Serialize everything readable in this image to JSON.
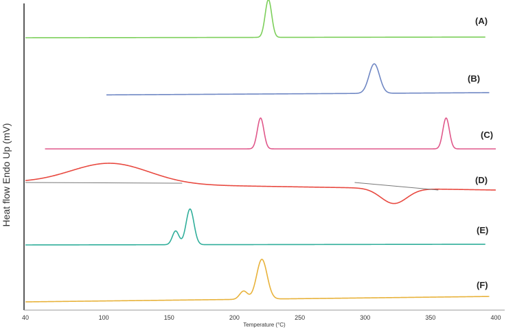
{
  "chart_data": {
    "type": "line",
    "title": "",
    "xlabel": "Temperature (°C)",
    "ylabel": "Heat flow Endo Up (mV)",
    "xlim": [
      40,
      400
    ],
    "x_ticks": [
      "40",
      "100",
      "150",
      "200",
      "250",
      "300",
      "350",
      "400"
    ],
    "grid": false,
    "legend": "none",
    "series": [
      {
        "label": "(A)",
        "color": "#7ccf5a",
        "peaks": [
          {
            "x": 226,
            "height": 1.0,
            "width": 2.5
          }
        ]
      },
      {
        "label": "(B)",
        "color": "#6f87c4",
        "peaks": [
          {
            "x": 307,
            "height": 1.0,
            "width": 4
          }
        ]
      },
      {
        "label": "(C)",
        "color": "#e0578a",
        "peaks": [
          {
            "x": 220,
            "height": 1.0,
            "width": 2.5
          },
          {
            "x": 362,
            "height": 1.0,
            "width": 2.5
          }
        ]
      },
      {
        "label": "(D)",
        "color": "#e8483f",
        "peaks": [
          {
            "x": 105,
            "height": 1.0,
            "width": 30
          },
          {
            "x": 322,
            "height": -1.0,
            "width": 10
          }
        ]
      },
      {
        "label": "(E)",
        "color": "#2fae9a",
        "peaks": [
          {
            "x": 155,
            "height": 0.45,
            "width": 2.5
          },
          {
            "x": 166,
            "height": 1.0,
            "width": 3
          }
        ]
      },
      {
        "label": "(F)",
        "color": "#e8b23a",
        "peaks": [
          {
            "x": 207,
            "height": 0.25,
            "width": 3
          },
          {
            "x": 221,
            "height": 1.0,
            "width": 4
          }
        ]
      }
    ]
  }
}
